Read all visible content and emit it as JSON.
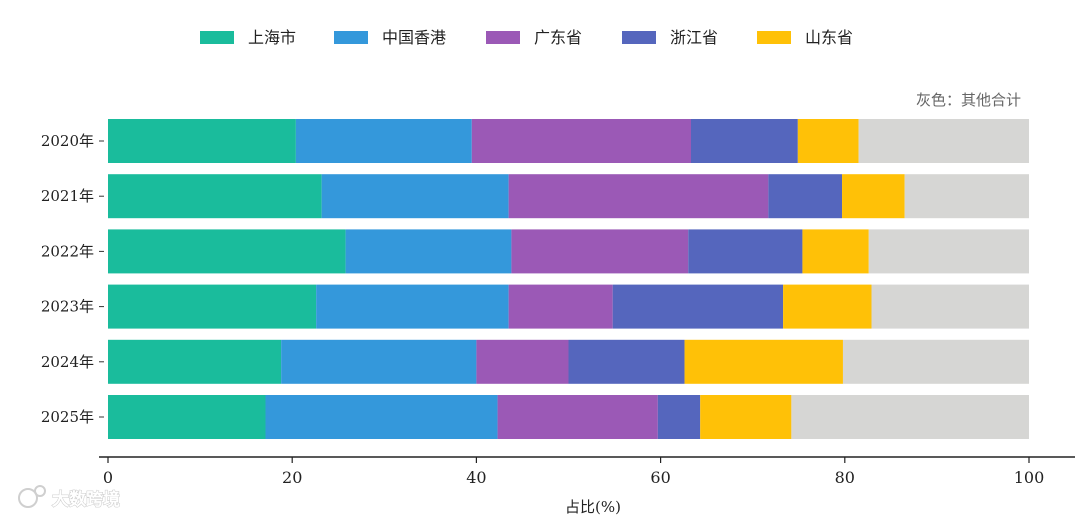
{
  "chart_data": {
    "type": "bar",
    "orientation": "horizontal",
    "stacked": true,
    "categories": [
      "2020年",
      "2021年",
      "2022年",
      "2023年",
      "2024年",
      "2025年"
    ],
    "series": [
      {
        "name": "上海市",
        "color": "#1abc9c",
        "values": [
          20.4,
          23.2,
          25.8,
          22.6,
          18.8,
          17.1
        ]
      },
      {
        "name": "中国香港",
        "color": "#3498db",
        "values": [
          19.1,
          20.3,
          18.0,
          20.9,
          21.2,
          25.2
        ]
      },
      {
        "name": "广东省",
        "color": "#9b59b6",
        "values": [
          23.8,
          28.2,
          19.2,
          11.3,
          10.0,
          17.4
        ]
      },
      {
        "name": "浙江省",
        "color": "#5566bd",
        "values": [
          11.6,
          8.0,
          12.4,
          18.5,
          12.6,
          4.6
        ]
      },
      {
        "name": "山东省",
        "color": "#ffc107",
        "values": [
          6.6,
          6.8,
          7.2,
          9.6,
          17.2,
          9.9
        ]
      },
      {
        "name": "其他",
        "color": "#d6d6d4",
        "values": [
          18.5,
          13.5,
          17.4,
          17.1,
          20.2,
          25.8
        ]
      }
    ],
    "legend": [
      "上海市",
      "中国香港",
      "广东省",
      "浙江省",
      "山东省"
    ],
    "legend_position": "top",
    "annotation": "灰色：其他合计",
    "xlabel": "占比(%)",
    "xlim": [
      0,
      100
    ],
    "xticks": [
      0,
      20,
      40,
      60,
      80,
      100
    ],
    "grid": false
  },
  "watermark": "大数跨境"
}
